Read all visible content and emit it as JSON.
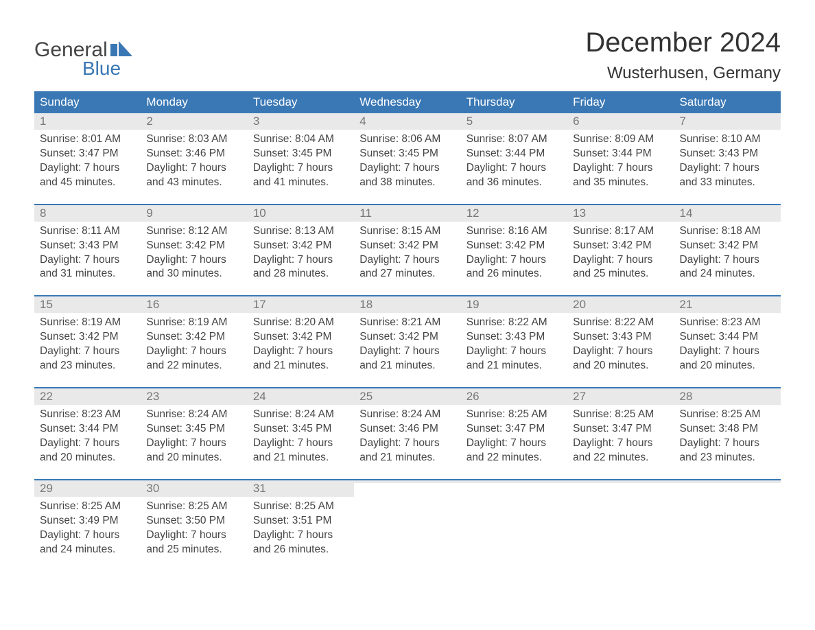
{
  "brand": {
    "line1": "General",
    "line2": "Blue"
  },
  "header": {
    "month_title": "December 2024",
    "location": "Wusterhusen, Germany"
  },
  "colors": {
    "header_bg": "#3a78b5",
    "daynum_bg": "#e9e9e9",
    "text": "#444444",
    "daynum_text": "#777777",
    "week_border": "#3a78b5",
    "logo_accent": "#3a78b5"
  },
  "day_headers": [
    "Sunday",
    "Monday",
    "Tuesday",
    "Wednesday",
    "Thursday",
    "Friday",
    "Saturday"
  ],
  "weeks": [
    [
      {
        "n": "1",
        "sunrise": "8:01 AM",
        "sunset": "3:47 PM",
        "day_h": 7,
        "day_m": 45
      },
      {
        "n": "2",
        "sunrise": "8:03 AM",
        "sunset": "3:46 PM",
        "day_h": 7,
        "day_m": 43
      },
      {
        "n": "3",
        "sunrise": "8:04 AM",
        "sunset": "3:45 PM",
        "day_h": 7,
        "day_m": 41
      },
      {
        "n": "4",
        "sunrise": "8:06 AM",
        "sunset": "3:45 PM",
        "day_h": 7,
        "day_m": 38
      },
      {
        "n": "5",
        "sunrise": "8:07 AM",
        "sunset": "3:44 PM",
        "day_h": 7,
        "day_m": 36
      },
      {
        "n": "6",
        "sunrise": "8:09 AM",
        "sunset": "3:44 PM",
        "day_h": 7,
        "day_m": 35
      },
      {
        "n": "7",
        "sunrise": "8:10 AM",
        "sunset": "3:43 PM",
        "day_h": 7,
        "day_m": 33
      }
    ],
    [
      {
        "n": "8",
        "sunrise": "8:11 AM",
        "sunset": "3:43 PM",
        "day_h": 7,
        "day_m": 31
      },
      {
        "n": "9",
        "sunrise": "8:12 AM",
        "sunset": "3:42 PM",
        "day_h": 7,
        "day_m": 30
      },
      {
        "n": "10",
        "sunrise": "8:13 AM",
        "sunset": "3:42 PM",
        "day_h": 7,
        "day_m": 28
      },
      {
        "n": "11",
        "sunrise": "8:15 AM",
        "sunset": "3:42 PM",
        "day_h": 7,
        "day_m": 27
      },
      {
        "n": "12",
        "sunrise": "8:16 AM",
        "sunset": "3:42 PM",
        "day_h": 7,
        "day_m": 26
      },
      {
        "n": "13",
        "sunrise": "8:17 AM",
        "sunset": "3:42 PM",
        "day_h": 7,
        "day_m": 25
      },
      {
        "n": "14",
        "sunrise": "8:18 AM",
        "sunset": "3:42 PM",
        "day_h": 7,
        "day_m": 24
      }
    ],
    [
      {
        "n": "15",
        "sunrise": "8:19 AM",
        "sunset": "3:42 PM",
        "day_h": 7,
        "day_m": 23
      },
      {
        "n": "16",
        "sunrise": "8:19 AM",
        "sunset": "3:42 PM",
        "day_h": 7,
        "day_m": 22
      },
      {
        "n": "17",
        "sunrise": "8:20 AM",
        "sunset": "3:42 PM",
        "day_h": 7,
        "day_m": 21
      },
      {
        "n": "18",
        "sunrise": "8:21 AM",
        "sunset": "3:42 PM",
        "day_h": 7,
        "day_m": 21
      },
      {
        "n": "19",
        "sunrise": "8:22 AM",
        "sunset": "3:43 PM",
        "day_h": 7,
        "day_m": 21
      },
      {
        "n": "20",
        "sunrise": "8:22 AM",
        "sunset": "3:43 PM",
        "day_h": 7,
        "day_m": 20
      },
      {
        "n": "21",
        "sunrise": "8:23 AM",
        "sunset": "3:44 PM",
        "day_h": 7,
        "day_m": 20
      }
    ],
    [
      {
        "n": "22",
        "sunrise": "8:23 AM",
        "sunset": "3:44 PM",
        "day_h": 7,
        "day_m": 20
      },
      {
        "n": "23",
        "sunrise": "8:24 AM",
        "sunset": "3:45 PM",
        "day_h": 7,
        "day_m": 20
      },
      {
        "n": "24",
        "sunrise": "8:24 AM",
        "sunset": "3:45 PM",
        "day_h": 7,
        "day_m": 21
      },
      {
        "n": "25",
        "sunrise": "8:24 AM",
        "sunset": "3:46 PM",
        "day_h": 7,
        "day_m": 21
      },
      {
        "n": "26",
        "sunrise": "8:25 AM",
        "sunset": "3:47 PM",
        "day_h": 7,
        "day_m": 22
      },
      {
        "n": "27",
        "sunrise": "8:25 AM",
        "sunset": "3:47 PM",
        "day_h": 7,
        "day_m": 22
      },
      {
        "n": "28",
        "sunrise": "8:25 AM",
        "sunset": "3:48 PM",
        "day_h": 7,
        "day_m": 23
      }
    ],
    [
      {
        "n": "29",
        "sunrise": "8:25 AM",
        "sunset": "3:49 PM",
        "day_h": 7,
        "day_m": 24
      },
      {
        "n": "30",
        "sunrise": "8:25 AM",
        "sunset": "3:50 PM",
        "day_h": 7,
        "day_m": 25
      },
      {
        "n": "31",
        "sunrise": "8:25 AM",
        "sunset": "3:51 PM",
        "day_h": 7,
        "day_m": 26
      },
      {
        "empty": true
      },
      {
        "empty": true
      },
      {
        "empty": true
      },
      {
        "empty": true
      }
    ]
  ],
  "labels": {
    "sunrise": "Sunrise:",
    "sunset": "Sunset:",
    "daylight_prefix": "Daylight:",
    "hours_word": "hours",
    "and_word": "and",
    "minutes_word": "minutes."
  }
}
